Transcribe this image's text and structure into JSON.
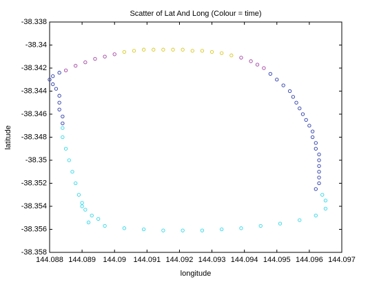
{
  "chart_data": {
    "type": "scatter",
    "title": "Scatter of Lat And Long (Colour = time)",
    "xlabel": "longitude",
    "ylabel": "latitude",
    "xlim": [
      144.088,
      144.097
    ],
    "ylim": [
      -38.358,
      -38.338
    ],
    "xticks": [
      144.088,
      144.089,
      144.09,
      144.091,
      144.092,
      144.093,
      144.094,
      144.095,
      144.096,
      144.097
    ],
    "yticks": [
      -38.358,
      -38.356,
      -38.354,
      -38.352,
      -38.35,
      -38.348,
      -38.346,
      -38.344,
      -38.342,
      -38.34,
      -38.338
    ],
    "series": [
      {
        "color": "#a040a0",
        "x": [
          144.0885,
          144.0888,
          144.0891,
          144.0894,
          144.0897,
          144.09
        ],
        "y": [
          -38.3422,
          -38.3418,
          -38.3415,
          -38.3412,
          -38.341,
          -38.3408
        ]
      },
      {
        "color": "#d8c820",
        "x": [
          144.0903,
          144.0906,
          144.0909,
          144.0912,
          144.0915,
          144.0918,
          144.0921,
          144.0924,
          144.0927,
          144.093,
          144.0933,
          144.0936
        ],
        "y": [
          -38.3406,
          -38.3405,
          -38.3404,
          -38.3404,
          -38.3404,
          -38.3404,
          -38.3404,
          -38.3405,
          -38.3405,
          -38.3406,
          -38.3407,
          -38.3409
        ]
      },
      {
        "color": "#a040a0",
        "x": [
          144.0939,
          144.0942,
          144.0944,
          144.0946
        ],
        "y": [
          -38.3411,
          -38.3414,
          -38.3417,
          -38.342
        ]
      },
      {
        "color": "#2838a8",
        "x": [
          144.0948,
          144.095,
          144.0952,
          144.0954,
          144.0955,
          144.0956,
          144.0957,
          144.0958,
          144.0959,
          144.096,
          144.0961,
          144.0961,
          144.0962,
          144.0962,
          144.0963,
          144.0963,
          144.0963,
          144.0963,
          144.0963,
          144.0963,
          144.0962
        ],
        "y": [
          -38.3425,
          -38.343,
          -38.3435,
          -38.344,
          -38.3445,
          -38.345,
          -38.3455,
          -38.346,
          -38.3465,
          -38.347,
          -38.3475,
          -38.348,
          -38.3485,
          -38.349,
          -38.3495,
          -38.35,
          -38.3505,
          -38.351,
          -38.3515,
          -38.352,
          -38.3525
        ]
      },
      {
        "color": "#30d8e8",
        "x": [
          144.0964,
          144.0965,
          144.0965,
          144.0962,
          144.0957,
          144.0951,
          144.0945,
          144.0939,
          144.0933,
          144.0927,
          144.0921,
          144.0915,
          144.0909,
          144.0903,
          144.0897,
          144.0892,
          144.0895,
          144.0893,
          144.0891,
          144.089,
          144.089,
          144.0889,
          144.0888,
          144.0887,
          144.0886,
          144.0885,
          144.0884,
          144.0884
        ],
        "y": [
          -38.353,
          -38.3535,
          -38.3542,
          -38.3548,
          -38.3552,
          -38.3555,
          -38.3557,
          -38.3559,
          -38.356,
          -38.3561,
          -38.3561,
          -38.3561,
          -38.356,
          -38.3559,
          -38.3557,
          -38.3554,
          -38.3551,
          -38.3548,
          -38.3543,
          -38.354,
          -38.3537,
          -38.353,
          -38.352,
          -38.351,
          -38.35,
          -38.349,
          -38.348,
          -38.3472
        ]
      },
      {
        "color": "#2838a8",
        "x": [
          144.0884,
          144.0884,
          144.0883,
          144.0883,
          144.0883,
          144.0882,
          144.0881,
          144.088,
          144.0881,
          144.0883
        ],
        "y": [
          -38.3468,
          -38.3462,
          -38.3456,
          -38.345,
          -38.3444,
          -38.3438,
          -38.3434,
          -38.343,
          -38.3427,
          -38.3424
        ]
      }
    ]
  }
}
